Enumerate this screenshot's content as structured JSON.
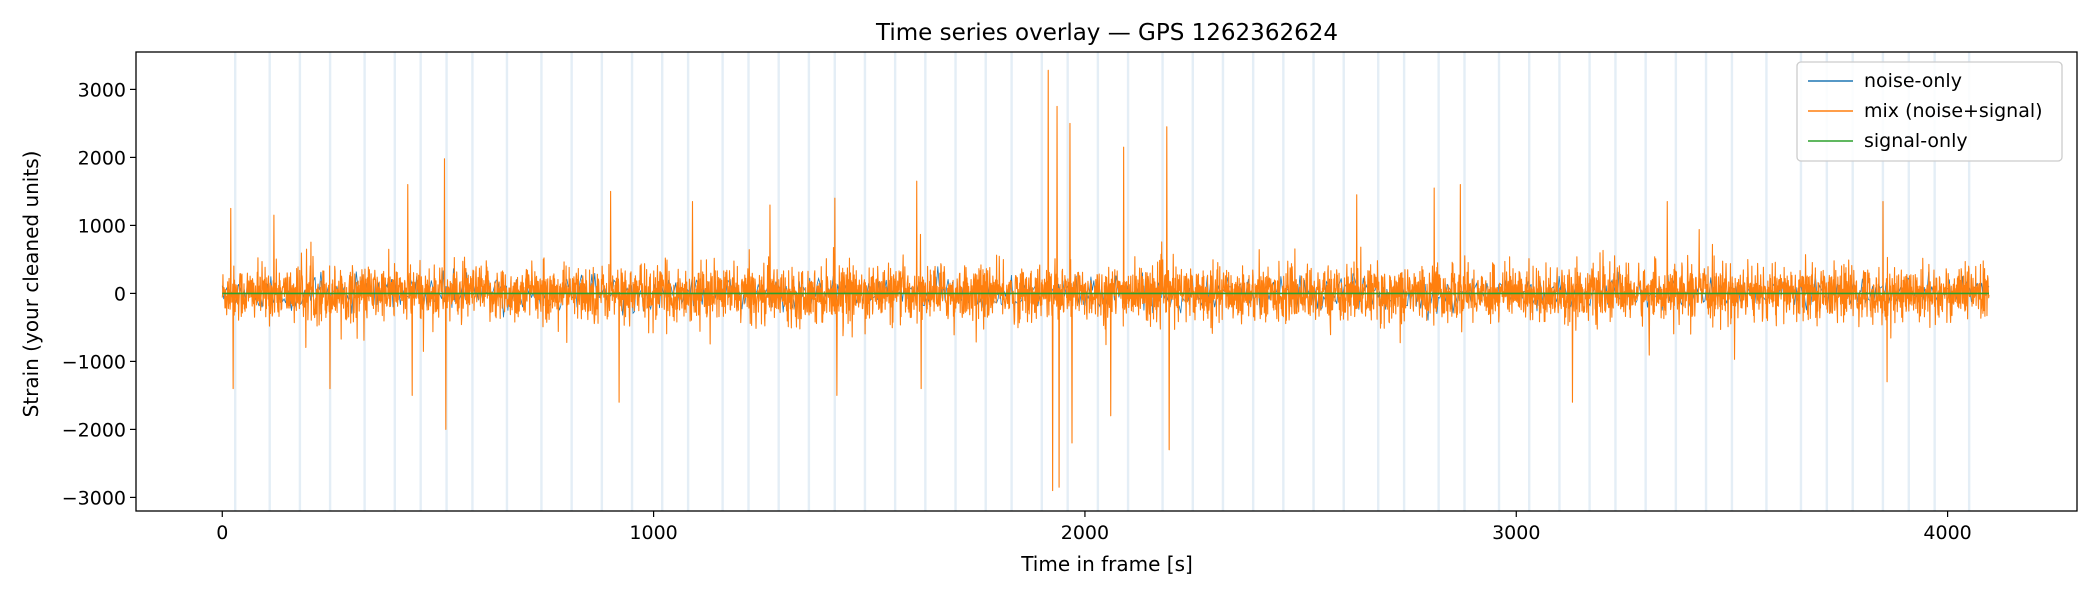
{
  "chart_data": {
    "type": "line",
    "title": "Time series overlay — GPS 1262362624",
    "xlabel": "Time in frame [s]",
    "ylabel": "Strain (your cleaned units)",
    "xlim": [
      -200,
      4300
    ],
    "ylim": [
      -3200,
      3550
    ],
    "x_ticks": [
      0,
      1000,
      2000,
      3000,
      4000
    ],
    "x_tick_labels": [
      "0",
      "1000",
      "2000",
      "3000",
      "4000"
    ],
    "y_ticks": [
      -3000,
      -2000,
      -1000,
      0,
      1000,
      2000,
      3000
    ],
    "y_tick_labels": [
      "−3000",
      "−2000",
      "−1000",
      "0",
      "1000",
      "2000",
      "3000"
    ],
    "x_range": [
      0,
      4096
    ],
    "grid": false,
    "legend_position": "top-right",
    "series": [
      {
        "name": "noise-only",
        "color": "#1f77b4",
        "typical_amplitude": 600
      },
      {
        "name": "mix (noise+signal)",
        "color": "#ff7f0e",
        "typical_amplitude": 600,
        "peaks": [
          {
            "x": 20,
            "y": 1250
          },
          {
            "x": 25,
            "y": -1400
          },
          {
            "x": 120,
            "y": 1150
          },
          {
            "x": 250,
            "y": -1400
          },
          {
            "x": 430,
            "y": 1600
          },
          {
            "x": 440,
            "y": -1500
          },
          {
            "x": 515,
            "y": 1980
          },
          {
            "x": 518,
            "y": -2000
          },
          {
            "x": 900,
            "y": 1500
          },
          {
            "x": 920,
            "y": -1600
          },
          {
            "x": 1090,
            "y": 1350
          },
          {
            "x": 1270,
            "y": 1300
          },
          {
            "x": 1420,
            "y": 1400
          },
          {
            "x": 1425,
            "y": -1500
          },
          {
            "x": 1610,
            "y": 1650
          },
          {
            "x": 1620,
            "y": -1400
          },
          {
            "x": 1915,
            "y": 3280
          },
          {
            "x": 1925,
            "y": -2900
          },
          {
            "x": 1935,
            "y": 2750
          },
          {
            "x": 1940,
            "y": -2850
          },
          {
            "x": 1965,
            "y": 2500
          },
          {
            "x": 1970,
            "y": -2200
          },
          {
            "x": 2090,
            "y": 2150
          },
          {
            "x": 2060,
            "y": -1800
          },
          {
            "x": 2190,
            "y": 2450
          },
          {
            "x": 2195,
            "y": -2300
          },
          {
            "x": 2630,
            "y": 1450
          },
          {
            "x": 2810,
            "y": 1550
          },
          {
            "x": 2870,
            "y": 1600
          },
          {
            "x": 3130,
            "y": -1600
          },
          {
            "x": 3350,
            "y": 1350
          },
          {
            "x": 3850,
            "y": 1350
          },
          {
            "x": 3860,
            "y": -1300
          }
        ]
      },
      {
        "name": "signal-only",
        "color": "#2ca02c",
        "values_constant": 0
      }
    ],
    "shaded_bands": [
      30,
      110,
      180,
      250,
      330,
      400,
      460,
      520,
      580,
      660,
      740,
      810,
      880,
      950,
      1020,
      1080,
      1160,
      1220,
      1290,
      1360,
      1420,
      1490,
      1560,
      1630,
      1700,
      1770,
      1830,
      1900,
      1960,
      2030,
      2100,
      2180,
      2250,
      2320,
      2390,
      2460,
      2530,
      2600,
      2680,
      2740,
      2820,
      2880,
      2960,
      3030,
      3100,
      3170,
      3230,
      3300,
      3370,
      3440,
      3500,
      3580,
      3660,
      3720,
      3780,
      3850,
      3910,
      3970,
      4050
    ],
    "band_color": "#1f77b4"
  }
}
